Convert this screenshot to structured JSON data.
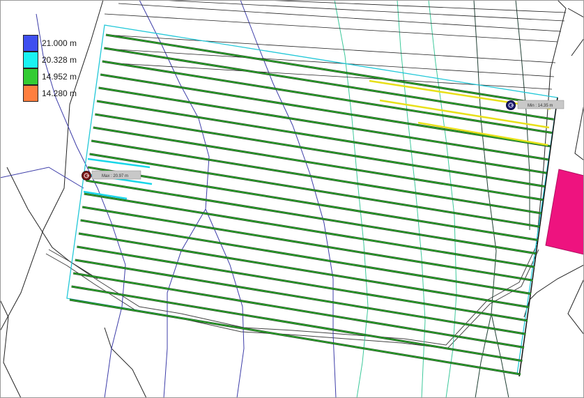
{
  "legend": {
    "items": [
      {
        "label": "21.000 m",
        "color": "#3f4ff0"
      },
      {
        "label": "20.328 m",
        "color": "#19f2f2"
      },
      {
        "label": "14.952 m",
        "color": "#33cc33"
      },
      {
        "label": "14.280 m",
        "color": "#ff7f3f"
      }
    ]
  },
  "markers": {
    "max_label": "Max : 20.97 m",
    "min_label": "Min : 14.35 m",
    "max_icon": "max-elevation-marker-icon",
    "min_icon": "min-elevation-marker-icon"
  },
  "colors": {
    "panel_row_green": "#2aa52a",
    "panel_row_cyan": "#19d6e8",
    "panel_row_yellow": "#e8e01a",
    "array_boundary": "#22c8d8",
    "contour_blue": "#3c3ca8",
    "contour_teal": "#3cc89a",
    "contour_dark": "#1f3f33",
    "building": "#ee137f",
    "path_gray": "#444444"
  }
}
